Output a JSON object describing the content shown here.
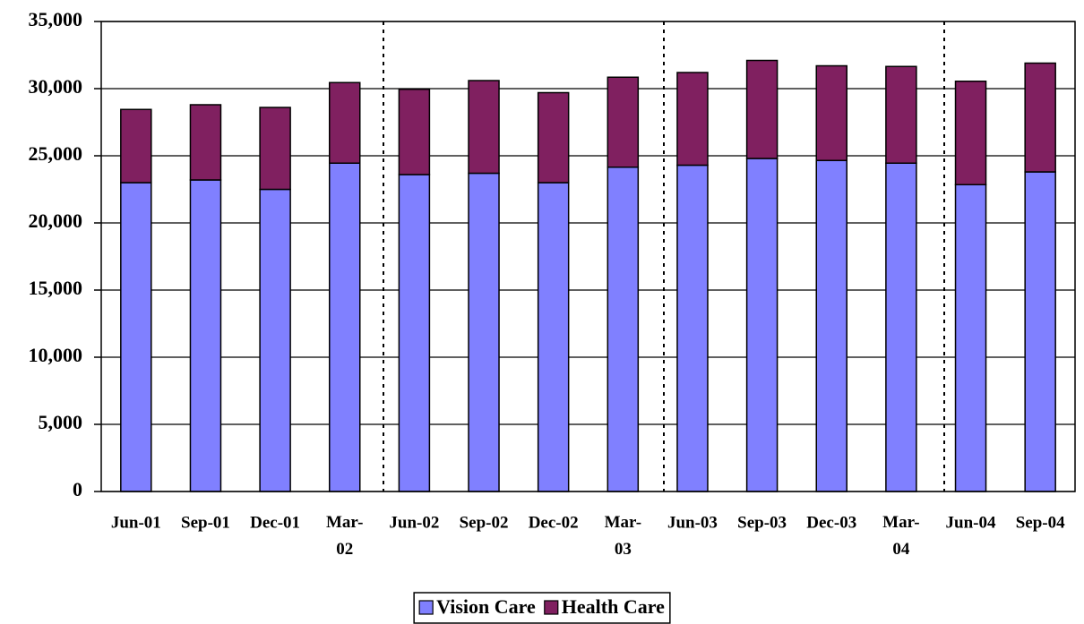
{
  "chart_data": {
    "type": "stacked_bar",
    "categories": [
      "Jun-01",
      "Sep-01",
      "Dec-01",
      "Mar-02",
      "Jun-02",
      "Sep-02",
      "Dec-02",
      "Mar-03",
      "Jun-03",
      "Sep-03",
      "Dec-03",
      "Mar-04",
      "Jun-04",
      "Sep-04"
    ],
    "series": [
      {
        "name": "Vision Care",
        "color": "#8080ff",
        "values": [
          23000,
          23200,
          22500,
          24450,
          23600,
          23700,
          23000,
          24150,
          24300,
          24800,
          24650,
          24450,
          22850,
          23800
        ]
      },
      {
        "name": "Health Care",
        "color": "#802060",
        "values": [
          5450,
          5600,
          6100,
          6000,
          6350,
          6900,
          6700,
          6700,
          6900,
          7300,
          7050,
          7200,
          7700,
          8100
        ]
      }
    ],
    "ylim": [
      0,
      35000
    ],
    "yticks": [
      0,
      {
        "value": 5000,
        "label": "5,000"
      },
      {
        "value": 10000,
        "label": "10,000"
      },
      {
        "value": 15000,
        "label": "15,000"
      },
      {
        "value": 20000,
        "label": "20,000"
      },
      {
        "value": 25000,
        "label": "25,000"
      },
      {
        "value": 30000,
        "label": "30,000"
      },
      {
        "value": 35000,
        "label": "35,000"
      }
    ],
    "grid": true,
    "legend": "bottom"
  }
}
